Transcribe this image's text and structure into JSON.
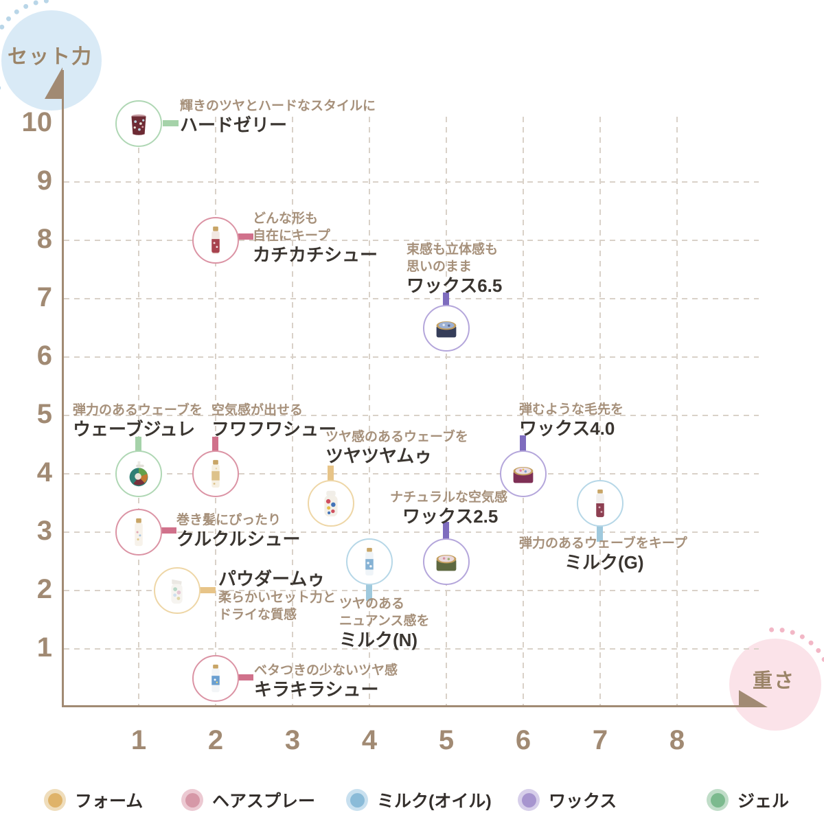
{
  "axes": {
    "y_label": "セット力",
    "x_label": "重さ",
    "y_ticks": [
      "10",
      "9",
      "8",
      "7",
      "6",
      "5",
      "4",
      "3",
      "2",
      "1"
    ],
    "x_ticks": [
      "1",
      "2",
      "3",
      "4",
      "5",
      "6",
      "7",
      "8"
    ]
  },
  "legend": [
    "フォーム",
    "ヘアスプレー",
    "ミルク(オイル)",
    "ワックス",
    "ジェル"
  ],
  "categories": {
    "フォーム": {
      "circle": "#eed6a6",
      "bar": "#e7c488",
      "legend_dot": "#dfb369",
      "legend_ring": "#efddbb"
    },
    "ヘアスプレー": {
      "circle": "#db93a4",
      "bar": "#d0718b",
      "legend_dot": "#d698a7",
      "legend_ring": "#ecc9d2"
    },
    "ミルク(オイル)": {
      "circle": "#b6d7e7",
      "bar": "#9fc9dd",
      "legend_dot": "#8abbd8",
      "legend_ring": "#c8e0ef"
    },
    "ワックス": {
      "circle": "#b4a6db",
      "bar": "#7e6cbe",
      "legend_dot": "#a795cf",
      "legend_ring": "#d7cfea"
    },
    "ジェル": {
      "circle": "#afd7b4",
      "bar": "#a5d2a9",
      "legend_dot": "#7cba8e",
      "legend_ring": "#c0ddc8"
    }
  },
  "colors": {
    "axis": "#a18a73",
    "tick_label": "#a18a73",
    "grid": "#d9d1c8",
    "caption_text": "#a6907a",
    "name_text": "#3a3530",
    "y_badge_bg": "#d9eaf6",
    "x_badge_bg": "#fbe3e9",
    "badge_text": "#9b8468",
    "y_badge_dots": "#b9d6e8",
    "x_badge_dots": "#f2b7c6",
    "background": "#ffffff"
  },
  "chart_data": {
    "type": "scatter",
    "title": "",
    "xlabel": "重さ",
    "ylabel": "セット力",
    "xlim": [
      0,
      8.6
    ],
    "ylim": [
      0,
      10.8
    ],
    "grid": true,
    "legend_position": "bottom",
    "points": [
      {
        "name": "ハードゼリー",
        "caption": "輝きのツヤとハードなスタイルに",
        "category": "ジェル",
        "x": 1,
        "y": 10,
        "icon": "jar"
      },
      {
        "name": "カチカチシュー",
        "caption": "どんな形も\n自在にキープ",
        "category": "ヘアスプレー",
        "x": 2,
        "y": 8,
        "icon": "spray-bottle"
      },
      {
        "name": "ワックス6.5",
        "caption": "束感も立体感も\n思いのまま",
        "category": "ワックス",
        "x": 5,
        "y": 6.5,
        "icon": "wax-tin"
      },
      {
        "name": "ウェーブジュレ",
        "caption": "弾力のあるウェーブを",
        "category": "ジェル",
        "x": 1,
        "y": 4,
        "icon": "pump-bottle"
      },
      {
        "name": "フワフワシュー",
        "caption": "空気感が出せる",
        "category": "ヘアスプレー",
        "x": 2,
        "y": 4,
        "icon": "spray-bottle"
      },
      {
        "name": "ツヤツヤムゥ",
        "caption": "ツヤ感のあるウェーブを",
        "category": "フォーム",
        "x": 3.5,
        "y": 3.5,
        "icon": "foam-bottle"
      },
      {
        "name": "ワックス4.0",
        "caption": "弾むような毛先を",
        "category": "ワックス",
        "x": 6,
        "y": 4,
        "icon": "wax-tin"
      },
      {
        "name": "クルクルシュー",
        "caption": "巻き髪にぴったり",
        "category": "ヘアスプレー",
        "x": 1,
        "y": 3,
        "icon": "spray-bottle"
      },
      {
        "name": "ミルク(G)",
        "caption": "弾力のあるウェーブをキープ",
        "category": "ミルク(オイル)",
        "x": 7,
        "y": 3.5,
        "icon": "milk-bottle"
      },
      {
        "name": "ワックス2.5",
        "caption": "ナチュラルな空気感",
        "category": "ワックス",
        "x": 5,
        "y": 2.5,
        "icon": "wax-tin"
      },
      {
        "name": "ミルク(N)",
        "caption": "ツヤのある\nニュアンス感を",
        "category": "ミルク(オイル)",
        "x": 4,
        "y": 2.5,
        "icon": "milk-bottle"
      },
      {
        "name": "パウダームゥ",
        "caption": "柔らかいセット力と\nドライな質感",
        "category": "フォーム",
        "x": 1.5,
        "y": 2,
        "icon": "foam-bottle"
      },
      {
        "name": "キラキラシュー",
        "caption": "ベタつきの少ないツヤ感",
        "category": "ヘアスプレー",
        "x": 2,
        "y": 0.5,
        "icon": "spray-bottle"
      }
    ]
  }
}
